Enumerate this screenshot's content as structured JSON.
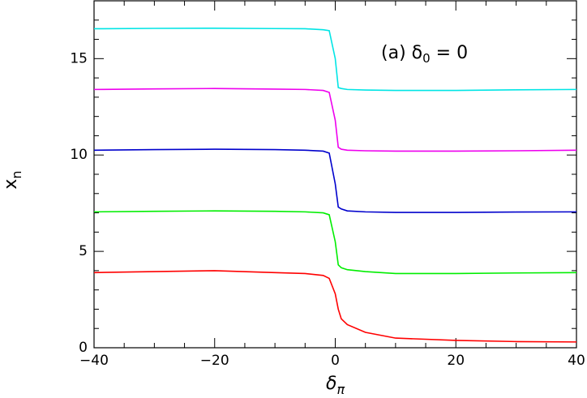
{
  "chart_data": {
    "type": "line",
    "annotation": [
      "(a)  δ",
      "0",
      "  =  0"
    ],
    "x_label": [
      "δ",
      "π"
    ],
    "y_label": [
      "x",
      "n"
    ],
    "x": [
      -40,
      -30,
      -20,
      -10,
      -5,
      -2,
      -1,
      0,
      0.5,
      1,
      2,
      5,
      10,
      20,
      30,
      40
    ],
    "series": [
      {
        "color": "#ff0000",
        "values": [
          3.9,
          3.95,
          4.0,
          3.9,
          3.85,
          3.75,
          3.6,
          2.8,
          2.0,
          1.5,
          1.2,
          0.8,
          0.5,
          0.38,
          0.32,
          0.3
        ]
      },
      {
        "color": "#00ee00",
        "values": [
          7.05,
          7.08,
          7.1,
          7.08,
          7.05,
          7.0,
          6.9,
          5.5,
          4.3,
          4.15,
          4.05,
          3.95,
          3.85,
          3.85,
          3.88,
          3.9
        ]
      },
      {
        "color": "#0000cc",
        "values": [
          10.25,
          10.28,
          10.3,
          10.28,
          10.25,
          10.2,
          10.1,
          8.5,
          7.3,
          7.2,
          7.1,
          7.05,
          7.02,
          7.02,
          7.04,
          7.05
        ]
      },
      {
        "color": "#ee00ee",
        "values": [
          13.4,
          13.43,
          13.45,
          13.42,
          13.4,
          13.35,
          13.25,
          11.8,
          10.4,
          10.3,
          10.25,
          10.22,
          10.2,
          10.2,
          10.22,
          10.25
        ]
      },
      {
        "color": "#00e5e5",
        "values": [
          16.55,
          16.57,
          16.58,
          16.56,
          16.55,
          16.5,
          16.45,
          15.0,
          13.5,
          13.45,
          13.4,
          13.37,
          13.35,
          13.35,
          13.38,
          13.4
        ]
      }
    ],
    "xlim": [
      -40,
      40
    ],
    "ylim": [
      0,
      18
    ],
    "xticks": [
      {
        "value": -40,
        "label": "−40"
      },
      {
        "value": -20,
        "label": "−20"
      },
      0,
      20,
      40
    ],
    "yticks": [
      0,
      5,
      10,
      15
    ],
    "xminorticks": [
      -35,
      -30,
      -25,
      -15,
      -10,
      -5,
      5,
      10,
      15,
      25,
      30,
      35
    ],
    "yminorticks": [
      1,
      2,
      3,
      4,
      6,
      7,
      8,
      9,
      11,
      12,
      13,
      14,
      16,
      17
    ]
  }
}
